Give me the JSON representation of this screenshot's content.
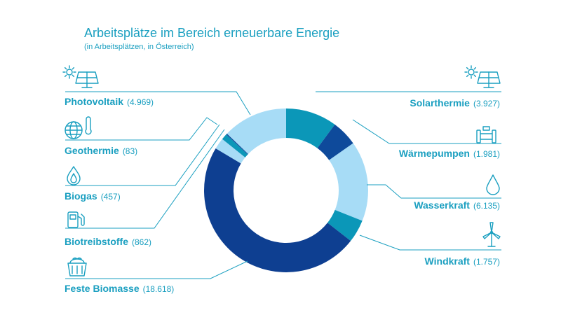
{
  "chart_data": {
    "type": "pie",
    "title": "Arbeitsplätze im Bereich erneuerbare Energie",
    "subtitle": "(in Arbeitsplätzen, in Österreich)",
    "categories": [
      "Solarthermie",
      "Wärmepumpen",
      "Wasserkraft",
      "Windkraft",
      "Feste Biomasse",
      "Biotreibstoffe",
      "Biogas",
      "Geothermie",
      "Photovoltaik"
    ],
    "values": [
      3927,
      1981,
      6135,
      1757,
      18618,
      862,
      457,
      83,
      4969
    ],
    "value_labels": [
      "(3.927)",
      "(1.981)",
      "(6.135)",
      "(1.757)",
      "(18.618)",
      "(862)",
      "(457)",
      "(83)",
      "(4.969)"
    ],
    "colors": [
      "#0b97b8",
      "#0e4a9b",
      "#a7dcf6",
      "#0b97b8",
      "#0e3f91",
      "#a7dcf6",
      "#0b97b8",
      "#0e4a9b",
      "#a7dcf6"
    ],
    "icons": [
      "solar-collector-icon",
      "heat-pump-pipe-icon",
      "water-drop-icon",
      "wind-turbine-icon",
      "biomass-basket-icon",
      "fuel-pump-icon",
      "flame-icon",
      "globe-thermometer-icon",
      "sun-solar-panel-icon"
    ],
    "legend": "labels around the ring, connected by leader lines"
  }
}
